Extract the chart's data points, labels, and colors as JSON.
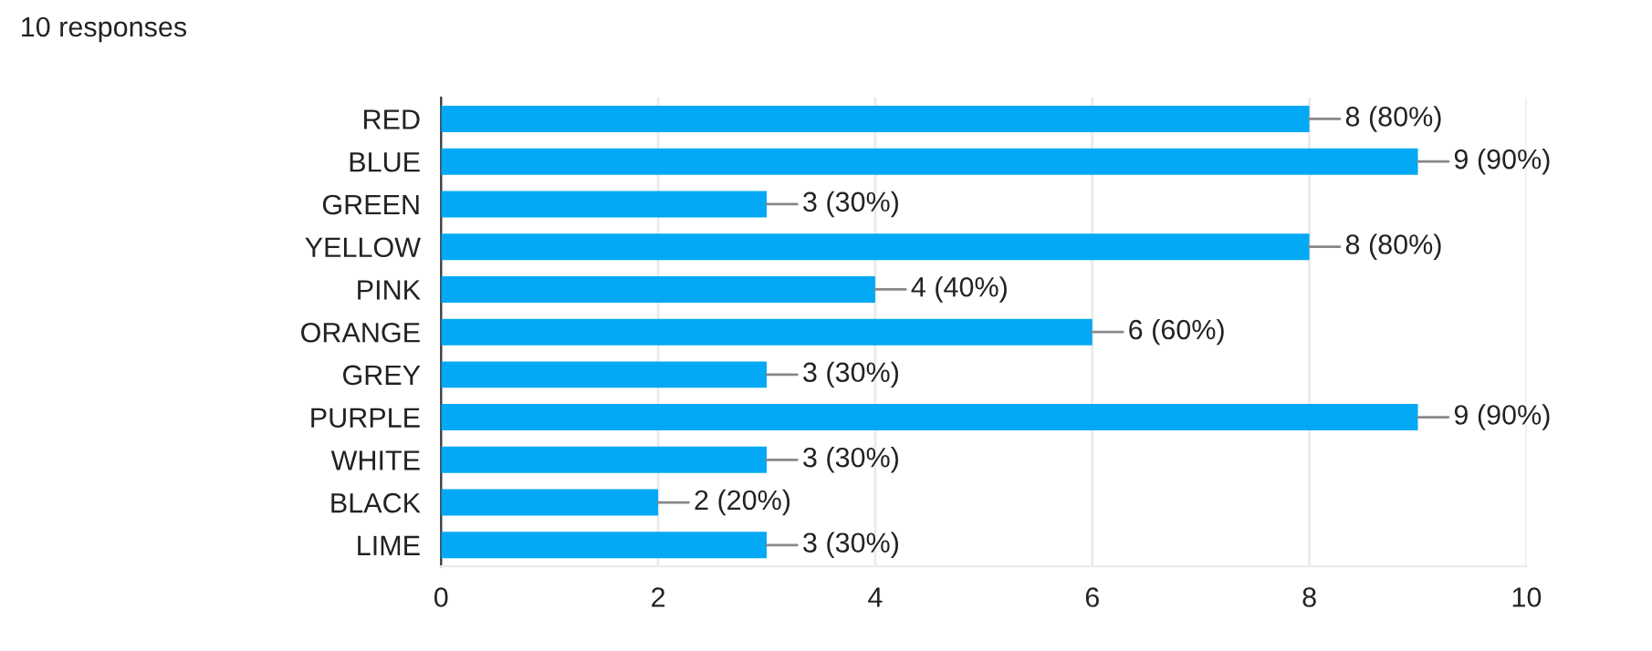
{
  "chart_data": {
    "type": "bar",
    "orientation": "horizontal",
    "title": "10 responses",
    "categories": [
      "RED",
      "BLUE",
      "GREEN",
      "YELLOW",
      "PINK",
      "ORANGE",
      "GREY",
      "PURPLE",
      "WHITE",
      "BLACK",
      "LIME"
    ],
    "values": [
      8,
      9,
      3,
      8,
      4,
      6,
      3,
      9,
      3,
      2,
      3
    ],
    "value_labels": [
      "8 (80%)",
      "9 (90%)",
      "3 (30%)",
      "8 (80%)",
      "4 (40%)",
      "6 (60%)",
      "3 (30%)",
      "9 (90%)",
      "3 (30%)",
      "2 (20%)",
      "3 (30%)"
    ],
    "color": "#03a9f4",
    "xlim": [
      0,
      10
    ],
    "xticks": [
      0,
      2,
      4,
      6,
      8,
      10
    ],
    "grid": "x",
    "legend": false
  }
}
